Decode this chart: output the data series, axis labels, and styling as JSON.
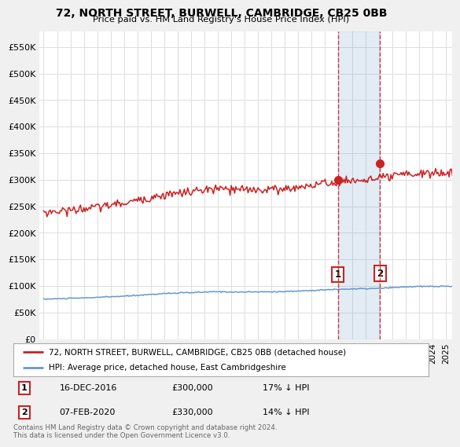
{
  "title": "72, NORTH STREET, BURWELL, CAMBRIDGE, CB25 0BB",
  "subtitle": "Price paid vs. HM Land Registry's House Price Index (HPI)",
  "ylabel_values": [
    0,
    50000,
    100000,
    150000,
    200000,
    250000,
    300000,
    350000,
    400000,
    450000,
    500000,
    550000
  ],
  "ylim": [
    0,
    580000
  ],
  "xlim_start": 1994.7,
  "xlim_end": 2025.5,
  "marker1_x": 2016.96,
  "marker1_y": 300000,
  "marker2_x": 2020.1,
  "marker2_y": 330000,
  "line1_color": "#cc2222",
  "line2_color": "#6699cc",
  "line1_label": "72, NORTH STREET, BURWELL, CAMBRIDGE, CB25 0BB (detached house)",
  "line2_label": "HPI: Average price, detached house, East Cambridgeshire",
  "marker1_date": "16-DEC-2016",
  "marker1_price": "£300,000",
  "marker1_hpi": "17% ↓ HPI",
  "marker2_date": "07-FEB-2020",
  "marker2_price": "£330,000",
  "marker2_hpi": "14% ↓ HPI",
  "footer": "Contains HM Land Registry data © Crown copyright and database right 2024.\nThis data is licensed under the Open Government Licence v3.0.",
  "background_color": "#f0f0f0",
  "plot_bg_color": "#ffffff",
  "grid_color": "#dddddd"
}
